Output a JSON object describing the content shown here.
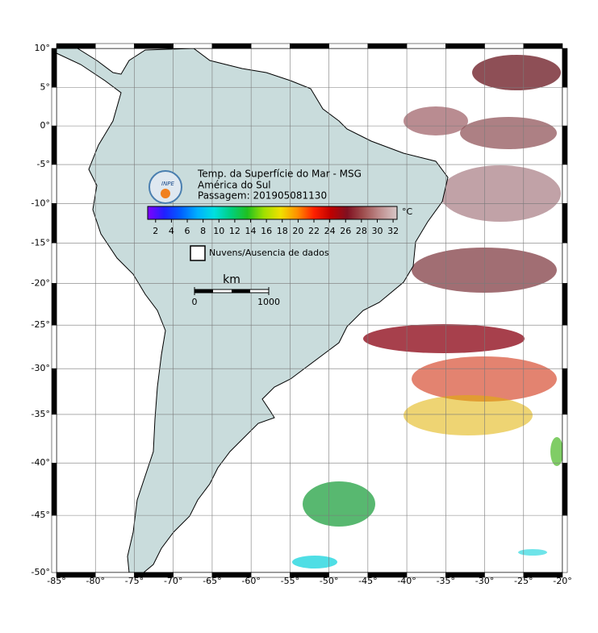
{
  "map": {
    "projection": "mercator",
    "xlim": [
      -85,
      -20
    ],
    "ylim": [
      -50,
      10
    ],
    "grid": true,
    "xticks": [
      {
        "value": -85,
        "label": "-85°"
      },
      {
        "value": -80,
        "label": "-80°"
      },
      {
        "value": -75,
        "label": "-75°"
      },
      {
        "value": -70,
        "label": "-70°"
      },
      {
        "value": -65,
        "label": "-65°"
      },
      {
        "value": -60,
        "label": "-60°"
      },
      {
        "value": -55,
        "label": "-55°"
      },
      {
        "value": -50,
        "label": "-50°"
      },
      {
        "value": -45,
        "label": "-45°"
      },
      {
        "value": -40,
        "label": "-40°"
      },
      {
        "value": -35,
        "label": "-35°"
      },
      {
        "value": -30,
        "label": "-30°"
      },
      {
        "value": -25,
        "label": "-25°"
      },
      {
        "value": -20,
        "label": "-20°"
      }
    ],
    "yticks": [
      {
        "value": 10,
        "label": "10°"
      },
      {
        "value": 5,
        "label": "5°"
      },
      {
        "value": 0,
        "label": "0°"
      },
      {
        "value": -5,
        "label": "-5°"
      },
      {
        "value": -10,
        "label": "-10°"
      },
      {
        "value": -15,
        "label": "-15°"
      },
      {
        "value": -20,
        "label": "-20°"
      },
      {
        "value": -25,
        "label": "-25°"
      },
      {
        "value": -30,
        "label": "-30°"
      },
      {
        "value": -35,
        "label": "-35°"
      },
      {
        "value": -40,
        "label": "-40°"
      },
      {
        "value": -45,
        "label": "-45°"
      },
      {
        "value": -50,
        "label": "-50°"
      }
    ]
  },
  "header": {
    "logo": "INPE",
    "title": "Temp. da Superfície do Mar - MSG",
    "subtitle": "América do Sul",
    "pass": "Passagem: 201905081130"
  },
  "colorbar": {
    "unit": "°C",
    "lim": [
      1,
      32.5
    ],
    "ticks": [
      2,
      4,
      6,
      8,
      10,
      12,
      14,
      16,
      18,
      20,
      22,
      24,
      26,
      28,
      30,
      32
    ],
    "colors": [
      "#8000ff",
      "#2020ff",
      "#0060ff",
      "#00b0ff",
      "#00e0e0",
      "#00d080",
      "#20c020",
      "#a0e000",
      "#f0e000",
      "#ff9000",
      "#ff2000",
      "#c00000",
      "#801020",
      "#a05050",
      "#c09090",
      "#d8c8c8"
    ]
  },
  "legend": {
    "clouds": "Nuvens/Ausencia de dados"
  },
  "scalebar": {
    "unit": "km",
    "ticks": [
      0,
      1000
    ]
  }
}
